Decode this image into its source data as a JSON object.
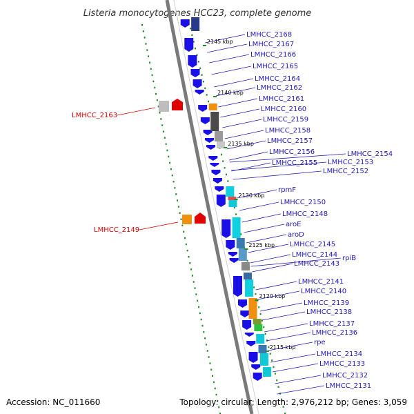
{
  "title": "Listeria monocytogenes HCC23, complete genome",
  "footer": {
    "accession": "Accession: NC_011660",
    "topology": "Topology: circular; Length: 2,976,212 bp; Genes: 3,059"
  },
  "colors": {
    "forward": "#1a10e6",
    "reverse_label": "#d40000",
    "label": "#1f18b8",
    "backbone": "#7a7a7a",
    "gc": "#1e8c1e"
  },
  "ticks": [
    "2145 kbp",
    "2140 kbp",
    "2135 kbp",
    "2130 kbp",
    "2125 kbp",
    "2120 kbp",
    "2115 kbp"
  ],
  "left_labels": [
    "LMHCC_2163",
    "LMHCC_2149"
  ],
  "right_labels": [
    "LMHCC_2168",
    "LMHCC_2167",
    "LMHCC_2166",
    "LMHCC_2165",
    "LMHCC_2164",
    "LMHCC_2162",
    "LMHCC_2161",
    "LMHCC_2160",
    "LMHCC_2159",
    "LMHCC_2158",
    "LMHCC_2157",
    "LMHCC_2156",
    "LMHCC_2155",
    "LMHCC_2154",
    "LMHCC_2153",
    "LMHCC_2152",
    "rpmF",
    "LMHCC_2150",
    "LMHCC_2148",
    "aroE",
    "aroD",
    "LMHCC_2145",
    "LMHCC_2144",
    "rpiB",
    "LMHCC_2143",
    "LMHCC_2141",
    "LMHCC_2140",
    "LMHCC_2139",
    "LMHCC_2138",
    "LMHCC_2137",
    "LMHCC_2136",
    "rpe",
    "LMHCC_2134",
    "LMHCC_2133",
    "LMHCC_2132",
    "LMHCC_2131"
  ]
}
